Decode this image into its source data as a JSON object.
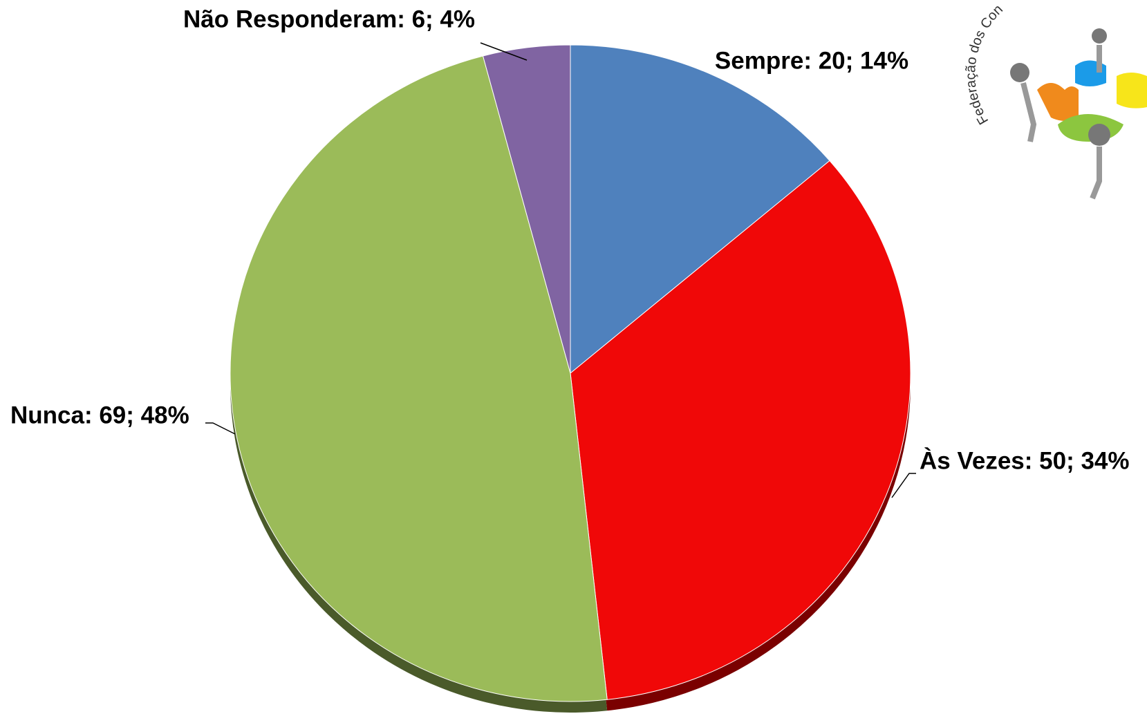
{
  "chart_data": {
    "type": "pie",
    "values": [
      20,
      50,
      69,
      6
    ],
    "value_labels": [
      "Sempre: 20; 14%",
      "Às Vezes: 50; 34%",
      "Nunca: 69; 48%",
      "Não Responderam: 6; 4%"
    ],
    "colors": [
      "#4f81bd",
      "#f00808",
      "#9bbb59",
      "#8064a2"
    ],
    "shadow_colors": [
      "#2e4d73",
      "#7a0000",
      "#4a5a2a",
      "#4a3a60"
    ]
  },
  "logo": {
    "text": "Federação dos Con"
  }
}
